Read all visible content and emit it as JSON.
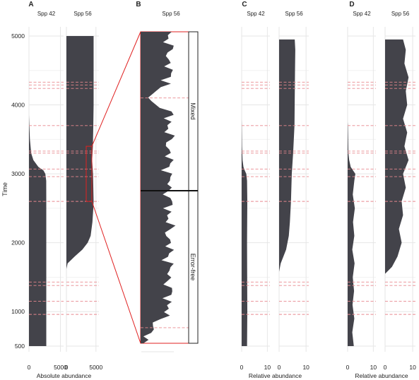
{
  "chart_data": {
    "type": "area",
    "y_axis": {
      "label": "Time",
      "ticks": [
        500,
        1000,
        2000,
        3000,
        4000,
        5000
      ],
      "range": [
        400,
        5100
      ]
    },
    "event_times": [
      960,
      1150,
      1380,
      1430,
      2600,
      2960,
      3070,
      3300,
      3330,
      3700,
      4240,
      4290,
      4330
    ],
    "zoom_event_times": [
      2640,
      3230,
      4540,
      4620
    ],
    "panels": [
      {
        "letter": "A",
        "xlabel": "Absolute abundance",
        "subpanels": [
          {
            "title": "Spp 42",
            "x_ticks": [
              0,
              5000
            ],
            "x_max": 5500,
            "profile": [
              [
                500,
                2750
              ],
              [
                1000,
                2750
              ],
              [
                2000,
                2750
              ],
              [
                2600,
                2750
              ],
              [
                2900,
                2740
              ],
              [
                3000,
                2600
              ],
              [
                3050,
                2300
              ],
              [
                3100,
                1500
              ],
              [
                3200,
                700
              ],
              [
                3300,
                350
              ],
              [
                3500,
                150
              ],
              [
                3700,
                60
              ],
              [
                3800,
                20
              ],
              [
                3850,
                0
              ]
            ]
          },
          {
            "title": "Spp 56",
            "x_ticks": [
              0,
              5000
            ],
            "x_max": 5500,
            "profile": [
              [
                1620,
                0
              ],
              [
                1700,
                200
              ],
              [
                1800,
                1400
              ],
              [
                1900,
                2700
              ],
              [
                2000,
                3600
              ],
              [
                2100,
                4100
              ],
              [
                2300,
                4400
              ],
              [
                2500,
                4550
              ],
              [
                2600,
                4600
              ],
              [
                3000,
                4500
              ],
              [
                3200,
                4350
              ],
              [
                3400,
                4480
              ],
              [
                3700,
                4550
              ],
              [
                4000,
                4600
              ],
              [
                4500,
                4600
              ],
              [
                5000,
                4600
              ]
            ]
          }
        ]
      },
      {
        "letter": "B",
        "title": "Spp 56",
        "zoom_time_range": [
          2600,
          3400
        ],
        "segments": [
          "Mixed",
          "Error-free"
        ]
      },
      {
        "letter": "C",
        "xlabel": "Relative abundance",
        "subpanels": [
          {
            "title": "Spp 42",
            "x_ticks": [
              0,
              10
            ],
            "x_max": 11,
            "profile": [
              [
                500,
                2.1
              ],
              [
                1000,
                2.2
              ],
              [
                2000,
                2.1
              ],
              [
                2600,
                2.2
              ],
              [
                2900,
                2.1
              ],
              [
                3000,
                1.8
              ],
              [
                3050,
                1.2
              ],
              [
                3100,
                0.7
              ],
              [
                3200,
                0.35
              ],
              [
                3400,
                0.15
              ],
              [
                3700,
                0.05
              ],
              [
                3800,
                0
              ]
            ]
          },
          {
            "title": "Spp 56",
            "x_ticks": [
              0,
              10
            ],
            "x_max": 11,
            "profile": [
              [
                1580,
                0
              ],
              [
                1700,
                0.6
              ],
              [
                1900,
                2.6
              ],
              [
                2100,
                3.6
              ],
              [
                2300,
                4.0
              ],
              [
                2600,
                4.4
              ],
              [
                3000,
                4.7
              ],
              [
                3300,
                5.2
              ],
              [
                3700,
                5.7
              ],
              [
                4100,
                5.8
              ],
              [
                4500,
                5.9
              ],
              [
                4800,
                6.0
              ],
              [
                4950,
                5.8
              ]
            ]
          }
        ]
      },
      {
        "letter": "D",
        "xlabel": "Relative abundance",
        "subpanels": [
          {
            "title": "Spp 42",
            "x_ticks": [
              0,
              10
            ],
            "x_max": 11,
            "profile": [
              [
                500,
                2.4
              ],
              [
                700,
                1.8
              ],
              [
                900,
                2.6
              ],
              [
                1100,
                1.9
              ],
              [
                1300,
                2.5
              ],
              [
                1500,
                2.0
              ],
              [
                1700,
                2.7
              ],
              [
                1900,
                1.8
              ],
              [
                2100,
                2.6
              ],
              [
                2300,
                2.1
              ],
              [
                2500,
                2.8
              ],
              [
                2700,
                2.0
              ],
              [
                2900,
                2.6
              ],
              [
                3000,
                3.0
              ],
              [
                3100,
                1.2
              ],
              [
                3200,
                0.6
              ],
              [
                3300,
                0.3
              ],
              [
                3500,
                0.2
              ],
              [
                3700,
                0.1
              ],
              [
                3750,
                0
              ]
            ]
          },
          {
            "title": "Spp 56",
            "x_ticks": [
              0,
              10
            ],
            "x_max": 11,
            "profile": [
              [
                1550,
                0
              ],
              [
                1650,
                2.5
              ],
              [
                1800,
                4.5
              ],
              [
                2000,
                6.0
              ],
              [
                2200,
                5.0
              ],
              [
                2400,
                6.5
              ],
              [
                2600,
                6.0
              ],
              [
                2800,
                7.5
              ],
              [
                3000,
                6.5
              ],
              [
                3200,
                8.5
              ],
              [
                3400,
                7.0
              ],
              [
                3600,
                8.0
              ],
              [
                3800,
                6.5
              ],
              [
                4000,
                8.0
              ],
              [
                4200,
                7.5
              ],
              [
                4400,
                8.5
              ],
              [
                4600,
                7.0
              ],
              [
                4800,
                7.5
              ],
              [
                4950,
                6.5
              ]
            ]
          }
        ]
      }
    ]
  }
}
